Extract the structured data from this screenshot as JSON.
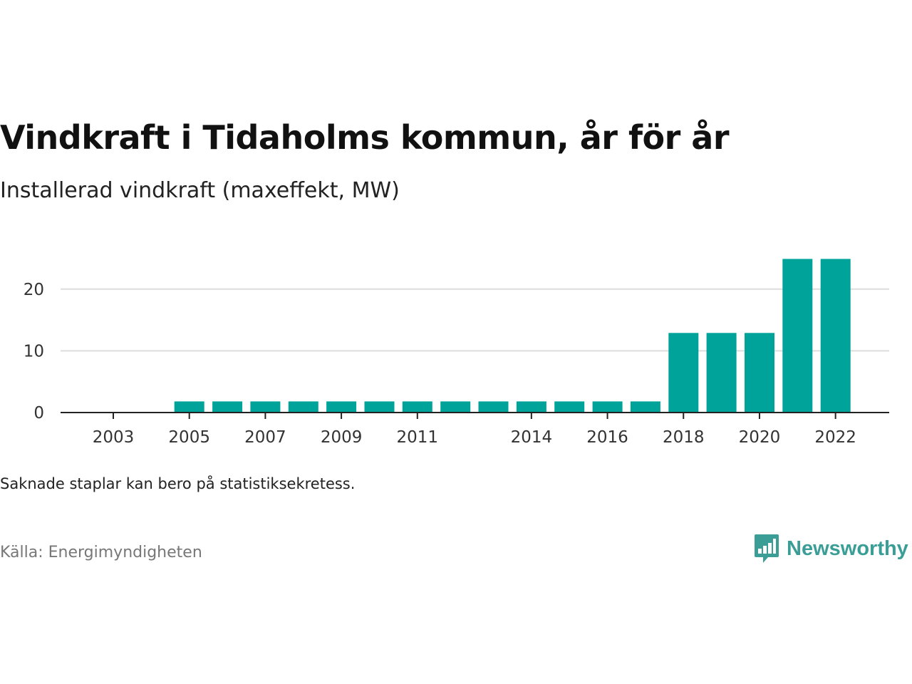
{
  "title": "Vindkraft i Tidaholms kommun, år för år",
  "subtitle": "Installerad vindkraft (maxeffekt, MW)",
  "note": "Saknade staplar kan bero på statistiksekretess.",
  "source": "Källa: Energimyndigheten",
  "brand": {
    "name": "Newsworthy",
    "icon": "bar-chart-speech-bubble-icon",
    "color": "#3a9e96"
  },
  "chart_data": {
    "type": "bar",
    "categories": [
      "2003",
      "2004",
      "2005",
      "2006",
      "2007",
      "2008",
      "2009",
      "2010",
      "2011",
      "2012",
      "2013",
      "2014",
      "2015",
      "2016",
      "2017",
      "2018",
      "2019",
      "2020",
      "2021",
      "2022"
    ],
    "values": [
      0,
      0,
      1.8,
      1.8,
      1.8,
      1.8,
      1.8,
      1.8,
      1.8,
      1.8,
      1.8,
      1.8,
      1.8,
      1.8,
      1.8,
      12.9,
      12.9,
      12.9,
      24.9,
      24.9
    ],
    "xtick_labels": [
      "2003",
      "2005",
      "2007",
      "2009",
      "2011",
      "2014",
      "2016",
      "2018",
      "2020",
      "2022"
    ],
    "yticks": [
      0,
      10,
      20
    ],
    "ylim": [
      0,
      25
    ],
    "bar_color": "#00a39a",
    "grid": true,
    "xlabel": "",
    "ylabel": ""
  }
}
